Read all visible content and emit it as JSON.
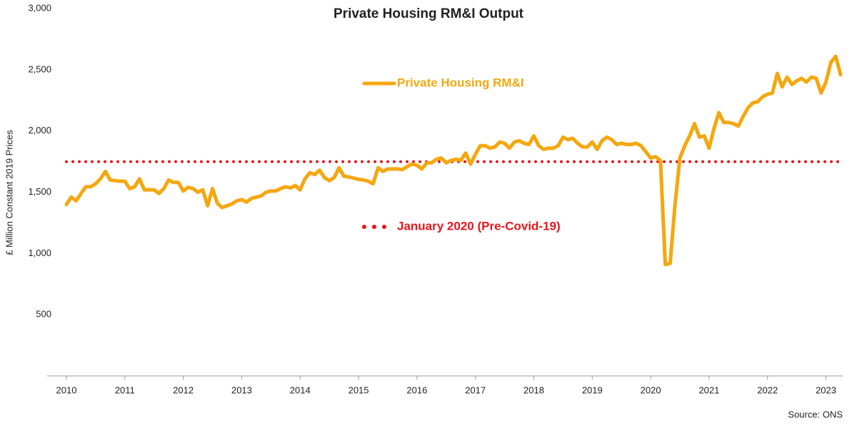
{
  "chart_data": {
    "type": "line",
    "title": "Private Housing RM&I Output",
    "y_label": "£ Million Constant 2019 Prices",
    "source": "Source: ONS",
    "categories": [
      "2010",
      null,
      null,
      null,
      null,
      null,
      null,
      null,
      null,
      null,
      null,
      null,
      "2011",
      null,
      null,
      null,
      null,
      null,
      null,
      null,
      null,
      null,
      null,
      null,
      "2012",
      null,
      null,
      null,
      null,
      null,
      null,
      null,
      null,
      null,
      null,
      null,
      "2013",
      null,
      null,
      null,
      null,
      null,
      null,
      null,
      null,
      null,
      null,
      null,
      "2014",
      null,
      null,
      null,
      null,
      null,
      null,
      null,
      null,
      null,
      null,
      null,
      "2015",
      null,
      null,
      null,
      null,
      null,
      null,
      null,
      null,
      null,
      null,
      null,
      "2016",
      null,
      null,
      null,
      null,
      null,
      null,
      null,
      null,
      null,
      null,
      null,
      "2017",
      null,
      null,
      null,
      null,
      null,
      null,
      null,
      null,
      null,
      null,
      null,
      "2018",
      null,
      null,
      null,
      null,
      null,
      null,
      null,
      null,
      null,
      null,
      null,
      "2019",
      null,
      null,
      null,
      null,
      null,
      null,
      null,
      null,
      null,
      null,
      null,
      "2020",
      null,
      null,
      null,
      null,
      null,
      null,
      null,
      null,
      null,
      null,
      null,
      "2021",
      null,
      null,
      null,
      null,
      null,
      null,
      null,
      null,
      null,
      null,
      null,
      "2022",
      null,
      null,
      null,
      null,
      null,
      null,
      null,
      null,
      null,
      null,
      null,
      "2023",
      null,
      null,
      null
    ],
    "series": [
      {
        "name": "Private Housing RM&I",
        "color": "#f5a70f",
        "values": [
          1400,
          1460,
          1430,
          1490,
          1545,
          1545,
          1570,
          1610,
          1670,
          1600,
          1595,
          1590,
          1590,
          1530,
          1545,
          1610,
          1520,
          1520,
          1520,
          1490,
          1530,
          1600,
          1580,
          1580,
          1510,
          1540,
          1530,
          1500,
          1520,
          1390,
          1530,
          1410,
          1375,
          1390,
          1405,
          1430,
          1440,
          1420,
          1450,
          1460,
          1470,
          1500,
          1510,
          1510,
          1530,
          1545,
          1535,
          1555,
          1520,
          1610,
          1660,
          1645,
          1680,
          1620,
          1595,
          1620,
          1700,
          1630,
          1625,
          1615,
          1605,
          1600,
          1590,
          1570,
          1700,
          1670,
          1690,
          1690,
          1690,
          1685,
          1710,
          1730,
          1720,
          1690,
          1740,
          1740,
          1770,
          1780,
          1740,
          1760,
          1770,
          1760,
          1820,
          1730,
          1810,
          1880,
          1880,
          1860,
          1870,
          1910,
          1900,
          1860,
          1910,
          1920,
          1900,
          1890,
          1960,
          1880,
          1850,
          1860,
          1860,
          1880,
          1950,
          1930,
          1940,
          1900,
          1870,
          1870,
          1910,
          1850,
          1920,
          1950,
          1930,
          1890,
          1900,
          1890,
          1890,
          1900,
          1880,
          1830,
          1780,
          1790,
          1760,
          910,
          920,
          1400,
          1780,
          1880,
          1960,
          2060,
          1950,
          1960,
          1860,
          2020,
          2150,
          2070,
          2070,
          2060,
          2040,
          2120,
          2190,
          2230,
          2240,
          2280,
          2300,
          2310,
          2470,
          2360,
          2440,
          2380,
          2410,
          2430,
          2400,
          2440,
          2430,
          2310,
          2400,
          2560,
          2610,
          2460
        ]
      }
    ],
    "reference_line": {
      "name": "January 2020 (Pre-Covid-19)",
      "value": 1750,
      "color": "#e8141b"
    },
    "ylim": [
      0,
      3000
    ],
    "yticks": [
      {
        "value": 0,
        "label": "-"
      },
      500,
      {
        "value": 1000,
        "label": "1,000"
      },
      {
        "value": 1500,
        "label": "1,500"
      },
      {
        "value": 2000,
        "label": "2,000"
      },
      {
        "value": 2500,
        "label": "2,500"
      },
      {
        "value": 3000,
        "label": "3,000"
      }
    ],
    "grid": false
  }
}
